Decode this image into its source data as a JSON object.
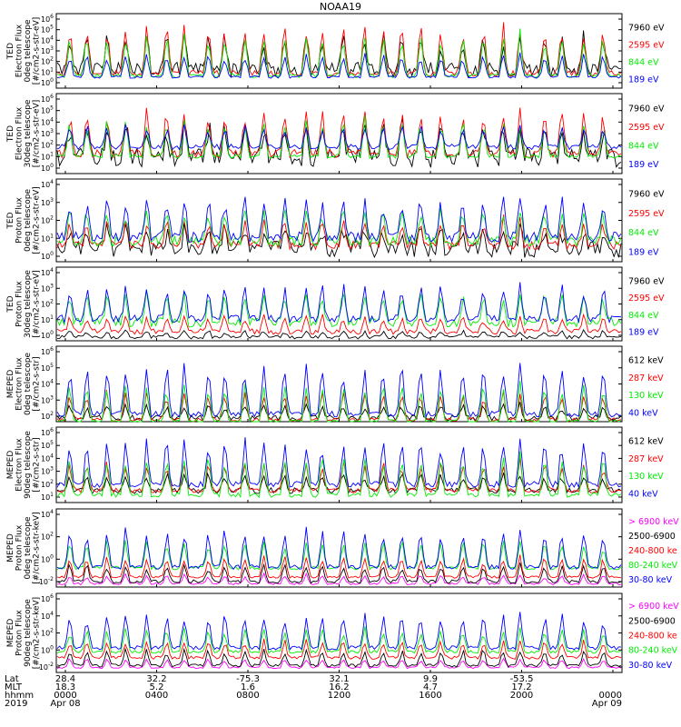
{
  "title": "NOAA19",
  "colors": {
    "black": "#000000",
    "red": "#ff0000",
    "green": "#00ee00",
    "blue": "#0000ff",
    "magenta": "#ff00ff"
  },
  "panels": [
    {
      "ylabel": [
        "TED",
        "Electron Flux",
        "0deg telescope",
        "[#/cm2-s-str-eV]"
      ],
      "ticks": [
        "10^6",
        "10^5",
        "10^4",
        "10^3",
        "10^2",
        "10^1",
        "10^0"
      ],
      "legend": [
        {
          "text": "7960 eV",
          "color": "#000000"
        },
        {
          "text": "2595 eV",
          "color": "#ff0000"
        },
        {
          "text": "844 eV",
          "color": "#00ee00"
        },
        {
          "text": "189 eV",
          "color": "#0000ff"
        }
      ]
    },
    {
      "ylabel": [
        "TED",
        "Electron Flux",
        "30deg telescope",
        "[#/cm2-s-str-eV]"
      ],
      "ticks": [
        "10^6",
        "10^5",
        "10^4",
        "10^3",
        "10^2",
        "10^1",
        "10^0"
      ],
      "legend": [
        {
          "text": "7960 eV",
          "color": "#000000"
        },
        {
          "text": "2595 eV",
          "color": "#ff0000"
        },
        {
          "text": "844 eV",
          "color": "#00ee00"
        },
        {
          "text": "189 eV",
          "color": "#0000ff"
        }
      ]
    },
    {
      "ylabel": [
        "TED",
        "Proton Flux",
        "0deg telescope",
        "[#/cm2-s-str-eV]"
      ],
      "ticks": [
        "10^4",
        "10^3",
        "10^2",
        "10^1",
        "10^0"
      ],
      "legend": [
        {
          "text": "7960 eV",
          "color": "#000000"
        },
        {
          "text": "2595 eV",
          "color": "#ff0000"
        },
        {
          "text": "844 eV",
          "color": "#00ee00"
        },
        {
          "text": "189 eV",
          "color": "#0000ff"
        }
      ]
    },
    {
      "ylabel": [
        "TED",
        "Proton Flux",
        "30deg telescope",
        "[#/cm2-s-str-eV]"
      ],
      "ticks": [
        "10^4",
        "10^3",
        "10^2",
        "10^1",
        "10^0"
      ],
      "legend": [
        {
          "text": "7960 eV",
          "color": "#000000"
        },
        {
          "text": "2595 eV",
          "color": "#ff0000"
        },
        {
          "text": "844 eV",
          "color": "#00ee00"
        },
        {
          "text": "189 eV",
          "color": "#0000ff"
        }
      ]
    },
    {
      "ylabel": [
        "MEPED",
        "Electron Flux",
        "0deg telescope",
        "[#/cm2-s-str]"
      ],
      "ticks": [
        "10^6",
        "10^5",
        "10^4",
        "10^3",
        "10^2"
      ],
      "legend": [
        {
          "text": "612 keV",
          "color": "#000000"
        },
        {
          "text": "287 keV",
          "color": "#ff0000"
        },
        {
          "text": "130 keV",
          "color": "#00ee00"
        },
        {
          "text": "40 keV",
          "color": "#0000ff"
        }
      ]
    },
    {
      "ylabel": [
        "MEPED",
        "Electron Flux",
        "90deg telescope",
        "[#/cm2-s-str]"
      ],
      "ticks": [
        "10^6",
        "10^5",
        "10^4",
        "10^3",
        "10^2",
        "10^1"
      ],
      "legend": [
        {
          "text": "612 keV",
          "color": "#000000"
        },
        {
          "text": "287 keV",
          "color": "#ff0000"
        },
        {
          "text": "130 keV",
          "color": "#00ee00"
        },
        {
          "text": "40 keV",
          "color": "#0000ff"
        }
      ]
    },
    {
      "ylabel": [
        "MEPED",
        "Proton Flux",
        "0deg telescope",
        "[#/cm2-s-str-keV]"
      ],
      "ticks": [
        "10^4",
        "10^2",
        "10^0",
        "10^-2"
      ],
      "legend": [
        {
          "text": "> 6900 keV",
          "color": "#ff00ff"
        },
        {
          "text": "2500-6900",
          "color": "#000000"
        },
        {
          "text": "240-800 ke",
          "color": "#ff0000"
        },
        {
          "text": "80-240 keV",
          "color": "#00ee00"
        },
        {
          "text": "30-80 keV",
          "color": "#0000ff"
        }
      ]
    },
    {
      "ylabel": [
        "MEPED",
        "Proton Flux",
        "90deg telescope",
        "[#/cm2-s-str-keV]"
      ],
      "ticks": [
        "10^6",
        "10^4",
        "10^2",
        "10^0",
        "10^-2"
      ],
      "legend": [
        {
          "text": "> 6900 keV",
          "color": "#ff00ff"
        },
        {
          "text": "2500-6900",
          "color": "#000000"
        },
        {
          "text": "240-800 ke",
          "color": "#ff0000"
        },
        {
          "text": "80-240 keV",
          "color": "#00ee00"
        },
        {
          "text": "30-80 keV",
          "color": "#0000ff"
        }
      ]
    }
  ],
  "footer": {
    "row_labels": [
      "Lat",
      "MLT",
      "hhmm",
      "2019"
    ],
    "columns": [
      {
        "lat": "28.4",
        "mlt": "18.3",
        "hhmm": "0000",
        "date": "Apr 08"
      },
      {
        "lat": "32.2",
        "mlt": "5.2",
        "hhmm": "0400",
        "date": ""
      },
      {
        "lat": "-75.3",
        "mlt": "1.6",
        "hhmm": "0800",
        "date": ""
      },
      {
        "lat": "32.1",
        "mlt": "16.2",
        "hhmm": "1200",
        "date": ""
      },
      {
        "lat": "9.9",
        "mlt": "4.7",
        "hhmm": "1600",
        "date": ""
      },
      {
        "lat": "-53.5",
        "mlt": "17.2",
        "hhmm": "2000",
        "date": ""
      },
      {
        "lat": "",
        "mlt": "",
        "hhmm": "0000",
        "date": "Apr 09"
      }
    ]
  },
  "chart_data": [
    {
      "type": "line",
      "title": "NOAA19",
      "x_time": [
        "0000",
        "0400",
        "0800",
        "1200",
        "1600",
        "2000",
        "0000"
      ],
      "y_log": true,
      "y_range_decades": [
        0,
        6
      ],
      "series": [
        {
          "name": "7960 eV",
          "color": "#000000",
          "baseline": 1.5,
          "peak": 4.5,
          "noise": 1.2
        },
        {
          "name": "2595 eV",
          "color": "#ff0000",
          "baseline": 1.2,
          "peak": 5.5,
          "noise": 0.5
        },
        {
          "name": "844 eV",
          "color": "#00ee00",
          "baseline": 1.0,
          "peak": 4.8,
          "noise": 0.3
        },
        {
          "name": "189 eV",
          "color": "#0000ff",
          "baseline": 0.9,
          "peak": 3.0,
          "noise": 0.2
        }
      ]
    },
    {
      "type": "line",
      "x_time": [
        "0000",
        "0400",
        "0800",
        "1200",
        "1600",
        "2000",
        "0000"
      ],
      "y_log": true,
      "y_range_decades": [
        0,
        6
      ],
      "series": [
        {
          "name": "7960 eV",
          "color": "#000000",
          "baseline": 1.2,
          "peak": 4.2,
          "noise": 1.5
        },
        {
          "name": "2595 eV",
          "color": "#ff0000",
          "baseline": 1.5,
          "peak": 5.2,
          "noise": 0.6
        },
        {
          "name": "844 eV",
          "color": "#00ee00",
          "baseline": 1.3,
          "peak": 4.5,
          "noise": 0.3
        },
        {
          "name": "189 eV",
          "color": "#0000ff",
          "baseline": 2.0,
          "peak": 3.8,
          "noise": 0.4
        }
      ]
    },
    {
      "type": "line",
      "x_time": [
        "0000",
        "0400",
        "0800",
        "1200",
        "1600",
        "2000",
        "0000"
      ],
      "y_log": true,
      "y_range_decades": [
        0,
        4
      ],
      "series": [
        {
          "name": "7960 eV",
          "color": "#000000",
          "baseline": 0.6,
          "peak": 1.8,
          "noise": 0.8
        },
        {
          "name": "2595 eV",
          "color": "#ff0000",
          "baseline": 0.8,
          "peak": 2.2,
          "noise": 0.4
        },
        {
          "name": "844 eV",
          "color": "#00ee00",
          "baseline": 1.0,
          "peak": 2.8,
          "noise": 0.5
        },
        {
          "name": "189 eV",
          "color": "#0000ff",
          "baseline": 1.2,
          "peak": 3.4,
          "noise": 0.5
        }
      ]
    },
    {
      "type": "line",
      "x_time": [
        "0000",
        "0400",
        "0800",
        "1200",
        "1600",
        "2000",
        "0000"
      ],
      "y_log": true,
      "y_range_decades": [
        0,
        4
      ],
      "series": [
        {
          "name": "7960 eV",
          "color": "#000000",
          "baseline": 0.2,
          "peak": 0.6,
          "noise": 0.2
        },
        {
          "name": "2595 eV",
          "color": "#ff0000",
          "baseline": 0.5,
          "peak": 1.5,
          "noise": 0.3
        },
        {
          "name": "844 eV",
          "color": "#00ee00",
          "baseline": 1.0,
          "peak": 2.8,
          "noise": 0.5
        },
        {
          "name": "189 eV",
          "color": "#0000ff",
          "baseline": 1.2,
          "peak": 3.2,
          "noise": 0.4
        }
      ]
    },
    {
      "type": "line",
      "x_time": [
        "0000",
        "0400",
        "0800",
        "1200",
        "1600",
        "2000",
        "0000"
      ],
      "y_log": true,
      "y_range_decades": [
        2,
        6
      ],
      "series": [
        {
          "name": "612 keV",
          "color": "#000000",
          "baseline": 2.2,
          "peak": 3.0,
          "noise": 0.3
        },
        {
          "name": "287 keV",
          "color": "#ff0000",
          "baseline": 2.1,
          "peak": 3.8,
          "noise": 0.2
        },
        {
          "name": "130 keV",
          "color": "#00ee00",
          "baseline": 2.0,
          "peak": 4.3,
          "noise": 0.2
        },
        {
          "name": "40 keV",
          "color": "#0000ff",
          "baseline": 2.4,
          "peak": 5.3,
          "noise": 0.3
        }
      ]
    },
    {
      "type": "line",
      "x_time": [
        "0000",
        "0400",
        "0800",
        "1200",
        "1600",
        "2000",
        "0000"
      ],
      "y_log": true,
      "y_range_decades": [
        1,
        6
      ],
      "series": [
        {
          "name": "612 keV",
          "color": "#000000",
          "baseline": 1.8,
          "peak": 3.0,
          "noise": 0.4
        },
        {
          "name": "287 keV",
          "color": "#ff0000",
          "baseline": 1.8,
          "peak": 4.0,
          "noise": 0.3
        },
        {
          "name": "130 keV",
          "color": "#00ee00",
          "baseline": 1.5,
          "peak": 4.5,
          "noise": 0.3
        },
        {
          "name": "40 keV",
          "color": "#0000ff",
          "baseline": 2.2,
          "peak": 5.5,
          "noise": 0.4
        }
      ]
    },
    {
      "type": "line",
      "x_time": [
        "0000",
        "0400",
        "0800",
        "1200",
        "1600",
        "2000",
        "0000"
      ],
      "y_log": true,
      "y_range_decades": [
        -2,
        5
      ],
      "series": [
        {
          "name": "> 6900 keV",
          "color": "#ff00ff",
          "baseline": -1.7,
          "peak": -0.8,
          "noise": 0.2
        },
        {
          "name": "2500-6900",
          "color": "#000000",
          "baseline": -1.5,
          "peak": 0.2,
          "noise": 0.3
        },
        {
          "name": "240-800 ke",
          "color": "#ff0000",
          "baseline": -1.1,
          "peak": 1.0,
          "noise": 0.2
        },
        {
          "name": "80-240 keV",
          "color": "#00ee00",
          "baseline": -0.3,
          "peak": 2.5,
          "noise": 0.3
        },
        {
          "name": "30-80 keV",
          "color": "#0000ff",
          "baseline": -0.2,
          "peak": 3.8,
          "noise": 0.4
        }
      ]
    },
    {
      "type": "line",
      "x_time": [
        "0000",
        "0400",
        "0800",
        "1200",
        "1600",
        "2000",
        "0000"
      ],
      "y_log": true,
      "y_range_decades": [
        -2,
        6
      ],
      "series": [
        {
          "name": "> 6900 keV",
          "color": "#ff00ff",
          "baseline": -1.5,
          "peak": -0.5,
          "noise": 0.2
        },
        {
          "name": "2500-6900",
          "color": "#000000",
          "baseline": -1.3,
          "peak": 0.5,
          "noise": 0.3
        },
        {
          "name": "240-800 ke",
          "color": "#ff0000",
          "baseline": -0.5,
          "peak": 1.5,
          "noise": 0.3
        },
        {
          "name": "80-240 keV",
          "color": "#00ee00",
          "baseline": 0.1,
          "peak": 2.8,
          "noise": 0.3
        },
        {
          "name": "30-80 keV",
          "color": "#0000ff",
          "baseline": 0.5,
          "peak": 4.5,
          "noise": 0.4
        }
      ]
    }
  ]
}
